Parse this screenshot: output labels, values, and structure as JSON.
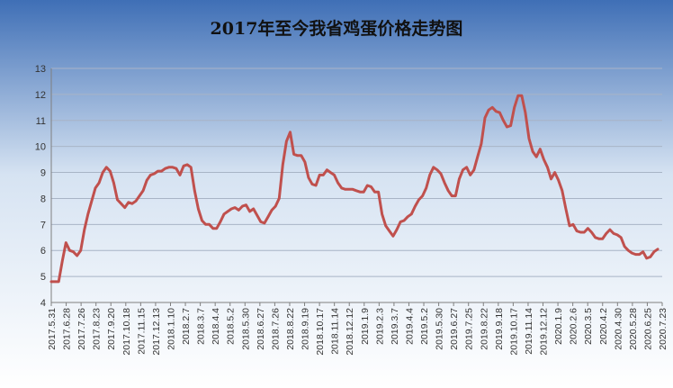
{
  "chart_data": {
    "type": "line",
    "title": "2017年至今我省鸡蛋价格走势图",
    "xlabel": "",
    "ylabel": "",
    "ylim": [
      4,
      13
    ],
    "yticks": [
      4,
      5,
      6,
      7,
      8,
      9,
      10,
      11,
      12,
      13
    ],
    "grid": true,
    "legend": "none",
    "colors": {
      "line": "#c0504d",
      "grid": "#a8b4c6",
      "axis": "#7f7f7f",
      "background_top": "#3f6fb6",
      "background_mid": "#d6e3f2",
      "background_bottom": "#ffffff"
    },
    "x_tick_labels": [
      "2017.5.31",
      "2017.6.28",
      "2017.7.26",
      "2017.8.23",
      "2017.9.20",
      "2017.10.18",
      "2017.11.15",
      "2017.12.13",
      "2018.1.10",
      "2018.2.7",
      "2018.3.7",
      "2018.4.4",
      "2018.5.2",
      "2018.5.30",
      "2018.6.27",
      "2018.7.26",
      "2018.8.22",
      "2018.9.19",
      "2018.10.17",
      "2018.11.14",
      "2018.12.12",
      "2019.1.9",
      "2019.2.3",
      "2019.3.7",
      "2019.4.4",
      "2019.5.2",
      "2019.5.30",
      "2019.6.27",
      "2019.7.25",
      "2019.8.22",
      "2019.9.18",
      "2019.10.17",
      "2019.11.14",
      "2019.12.12",
      "2020.1.9",
      "2020.2.6",
      "2020.3.5",
      "2020.4.2",
      "2020.4.30",
      "2020.5.28",
      "2020.6.25",
      "2020.7.23"
    ],
    "series": [
      {
        "values": [
          4.8,
          4.8,
          4.8,
          5.6,
          6.3,
          6.0,
          5.95,
          5.8,
          6.0,
          6.8,
          7.4,
          7.9,
          8.4,
          8.6,
          9.0,
          9.2,
          9.05,
          8.6,
          7.95,
          7.8,
          7.65,
          7.85,
          7.8,
          7.9,
          8.1,
          8.3,
          8.7,
          8.9,
          8.95,
          9.05,
          9.05,
          9.15,
          9.2,
          9.2,
          9.15,
          8.9,
          9.25,
          9.3,
          9.2,
          8.3,
          7.6,
          7.15,
          7.0,
          7.0,
          6.85,
          6.85,
          7.1,
          7.4,
          7.5,
          7.6,
          7.65,
          7.55,
          7.7,
          7.75,
          7.5,
          7.6,
          7.35,
          7.1,
          7.05,
          7.3,
          7.55,
          7.7,
          8.0,
          9.3,
          10.2,
          10.55,
          9.7,
          9.65,
          9.65,
          9.4,
          8.8,
          8.55,
          8.5,
          8.9,
          8.9,
          9.1,
          9.0,
          8.9,
          8.6,
          8.4,
          8.35,
          8.35,
          8.35,
          8.3,
          8.25,
          8.25,
          8.5,
          8.45,
          8.25,
          8.25,
          7.4,
          6.95,
          6.75,
          6.55,
          6.8,
          7.1,
          7.15,
          7.3,
          7.4,
          7.7,
          7.95,
          8.1,
          8.4,
          8.9,
          9.2,
          9.1,
          8.95,
          8.6,
          8.3,
          8.1,
          8.1,
          8.75,
          9.1,
          9.2,
          8.9,
          9.1,
          9.6,
          10.1,
          11.1,
          11.4,
          11.5,
          11.35,
          11.3,
          11.0,
          10.75,
          10.8,
          11.5,
          11.95,
          11.95,
          11.3,
          10.3,
          9.8,
          9.6,
          9.9,
          9.5,
          9.2,
          8.75,
          9.0,
          8.7,
          8.3,
          7.6,
          6.95,
          7.0,
          6.75,
          6.7,
          6.7,
          6.85,
          6.7,
          6.5,
          6.45,
          6.45,
          6.65,
          6.8,
          6.65,
          6.6,
          6.5,
          6.15,
          6.0,
          5.9,
          5.85,
          5.85,
          5.95,
          5.7,
          5.75,
          5.95,
          6.05
        ]
      }
    ]
  }
}
